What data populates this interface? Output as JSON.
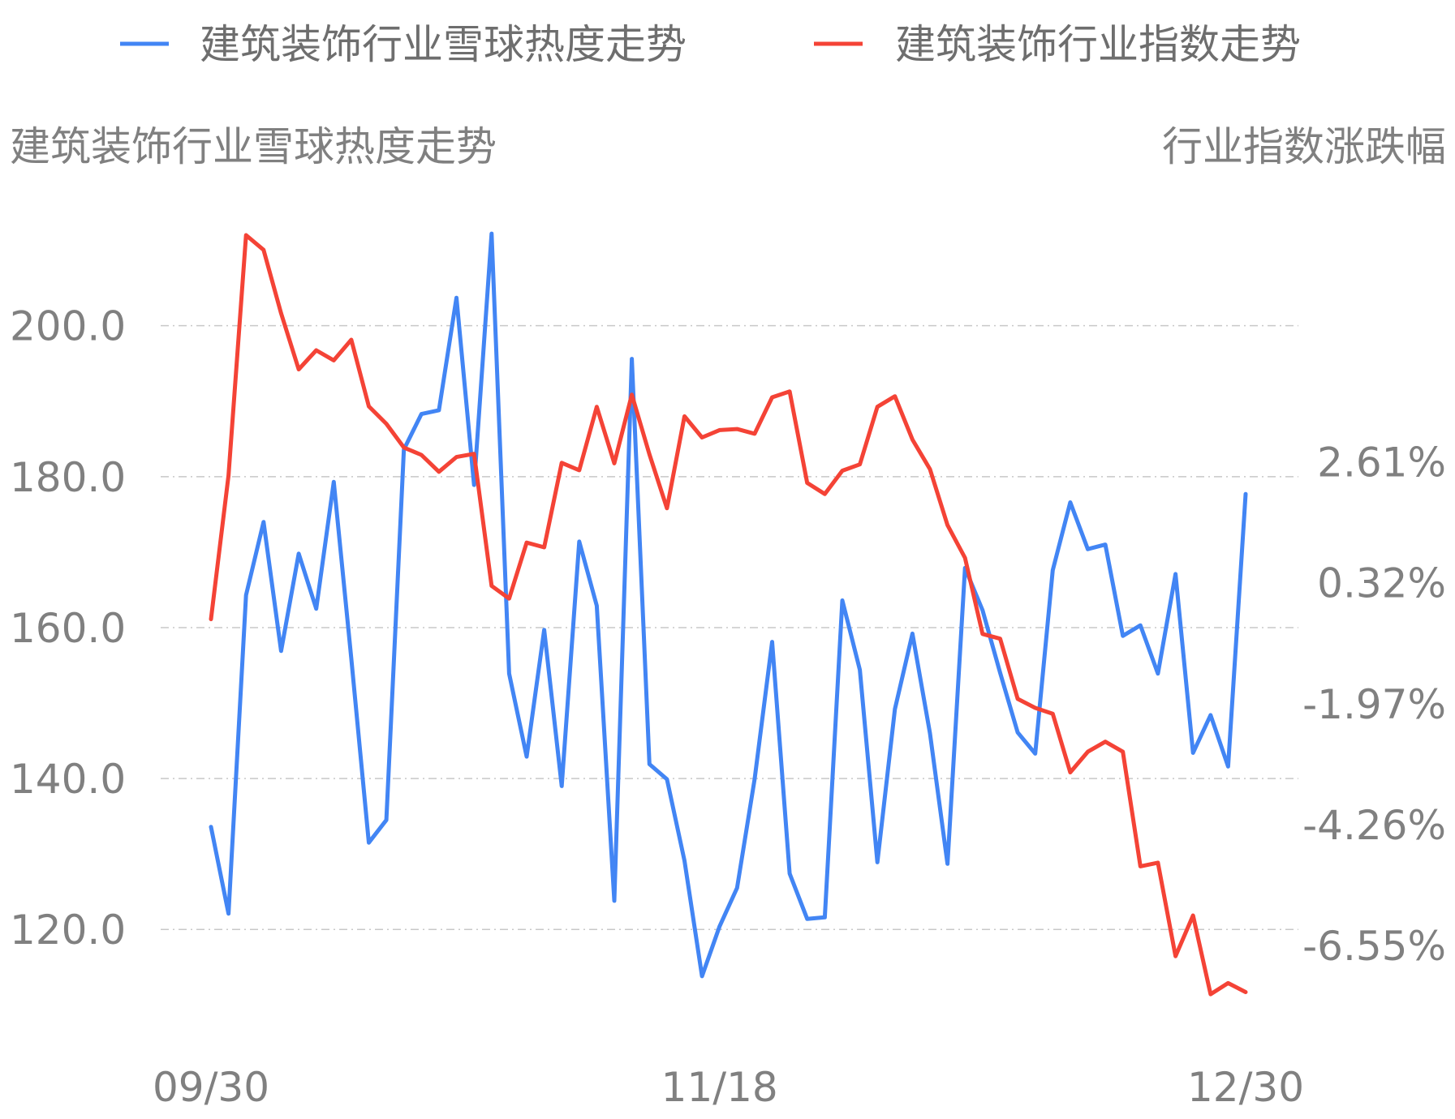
{
  "chart_data": {
    "type": "line",
    "legend": {
      "position": "top",
      "entries": [
        {
          "label": "建筑装饰行业雪球热度走势",
          "color": "#4285f4"
        },
        {
          "label": "建筑装饰行业指数走势",
          "color": "#f44336"
        }
      ]
    },
    "left_axis": {
      "title": "建筑装饰行业雪球热度走势",
      "ticks": [
        "200.0",
        "180.0",
        "160.0",
        "140.0",
        "120.0"
      ],
      "tick_values": [
        200,
        180,
        160,
        140,
        120
      ],
      "range": [
        111,
        212
      ]
    },
    "right_axis": {
      "title": "行业指数涨跌幅",
      "ticks": [
        "2.61%",
        "0.32%",
        "-1.97%",
        "-4.26%",
        "-6.55%"
      ],
      "tick_values": [
        2.61,
        0.32,
        -1.97,
        -4.26,
        -6.55
      ],
      "range": [
        -7.53,
        6.9
      ]
    },
    "x_axis": {
      "tick_labels": [
        "09/30",
        "11/18",
        "12/30"
      ],
      "tick_indices": [
        0,
        29,
        59
      ]
    },
    "grid": true,
    "series": [
      {
        "name": "建筑装饰行业雪球热度走势",
        "axis": "left",
        "color": "#4285f4",
        "values": [
          133.6,
          122.1,
          164.3,
          174.0,
          156.9,
          169.8,
          162.5,
          179.3,
          155.9,
          131.5,
          134.5,
          183.6,
          188.3,
          188.8,
          203.7,
          178.9,
          212.2,
          153.9,
          142.9,
          159.7,
          139.0,
          171.4,
          162.9,
          123.8,
          195.6,
          141.9,
          139.9,
          129.1,
          113.8,
          120.4,
          125.5,
          139.9,
          158.1,
          127.4,
          121.4,
          121.6,
          163.6,
          154.4,
          128.9,
          149.2,
          159.2,
          146.0,
          128.7,
          167.9,
          162.3,
          154.0,
          146.1,
          143.3,
          167.6,
          176.6,
          170.4,
          171.0,
          158.9,
          160.3,
          153.9,
          167.1,
          143.4,
          148.4,
          141.6,
          177.7
        ]
      },
      {
        "name": "建筑装饰行业指数走势",
        "axis": "right",
        "color": "#f44336",
        "values": [
          -0.37,
          2.35,
          6.9,
          6.62,
          5.42,
          4.36,
          4.72,
          4.53,
          4.92,
          3.66,
          3.33,
          2.88,
          2.74,
          2.42,
          2.7,
          2.76,
          0.26,
          0.02,
          1.08,
          0.99,
          2.59,
          2.45,
          3.65,
          2.58,
          3.88,
          2.75,
          1.73,
          3.47,
          3.07,
          3.21,
          3.23,
          3.14,
          3.83,
          3.94,
          2.21,
          2.0,
          2.44,
          2.56,
          3.65,
          3.85,
          3.03,
          2.47,
          1.41,
          0.79,
          -0.65,
          -0.74,
          -1.88,
          -2.05,
          -2.16,
          -3.27,
          -2.88,
          -2.69,
          -2.88,
          -5.05,
          -4.98,
          -6.75,
          -5.98,
          -7.47,
          -7.26,
          -7.43
        ]
      }
    ]
  }
}
